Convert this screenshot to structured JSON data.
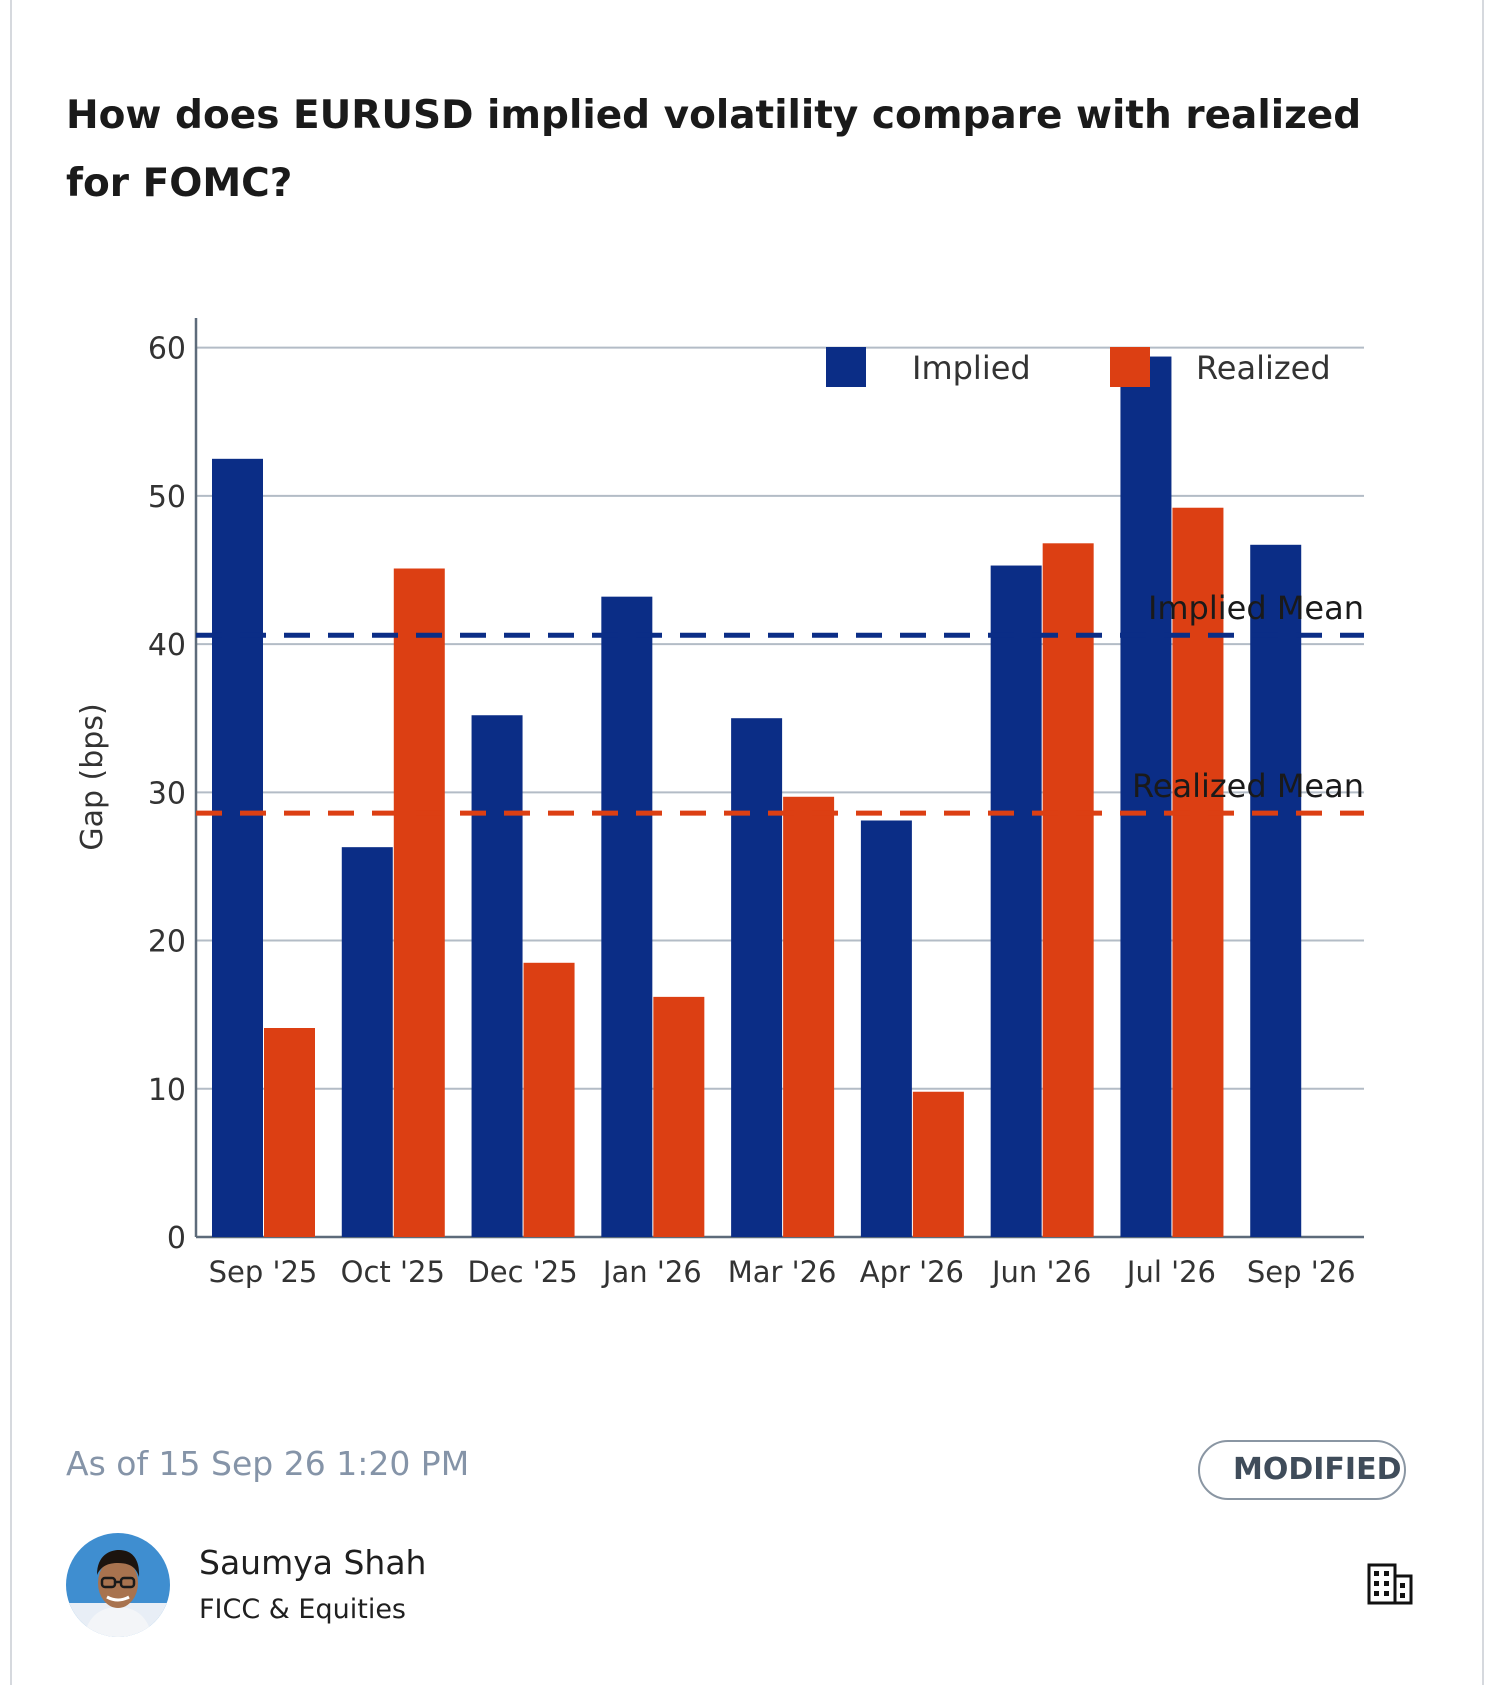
{
  "card": {
    "title": "How does EURUSD implied volatility compare with realized for FOMC?",
    "as_of": "As of 15 Sep 26 1:20 PM",
    "status_badge": "MODIFIED",
    "author": {
      "name": "Saumya Shah",
      "department": "FICC & Equities"
    },
    "icons": {
      "avatar": "avatar-photo",
      "building": "building-icon"
    }
  },
  "chart_data": {
    "type": "bar",
    "title": "",
    "xlabel": "",
    "ylabel": "Gap (bps)",
    "ylim": [
      0,
      62
    ],
    "yticks": [
      0,
      10,
      20,
      30,
      40,
      50,
      60
    ],
    "grid": true,
    "legend_position": "top-right",
    "categories": [
      "Sep '25",
      "Oct '25",
      "Dec '25",
      "Jan '26",
      "Mar '26",
      "Apr '26",
      "Jun '26",
      "Jul '26",
      "Sep '26"
    ],
    "series": [
      {
        "name": "Implied",
        "color": "#0b2d86",
        "values": [
          52.5,
          26.3,
          35.2,
          43.2,
          35.0,
          28.1,
          45.3,
          59.4,
          46.7
        ]
      },
      {
        "name": "Realized",
        "color": "#dc3f13",
        "values": [
          14.1,
          45.1,
          18.5,
          16.2,
          29.7,
          9.8,
          46.8,
          49.2,
          null
        ]
      }
    ],
    "reference_lines": [
      {
        "label": "Implied Mean",
        "value": 40.6,
        "color": "#0b2d86",
        "style": "dashed"
      },
      {
        "label": "Realized Mean",
        "value": 28.6,
        "color": "#dc3f13",
        "style": "dashed"
      }
    ]
  }
}
